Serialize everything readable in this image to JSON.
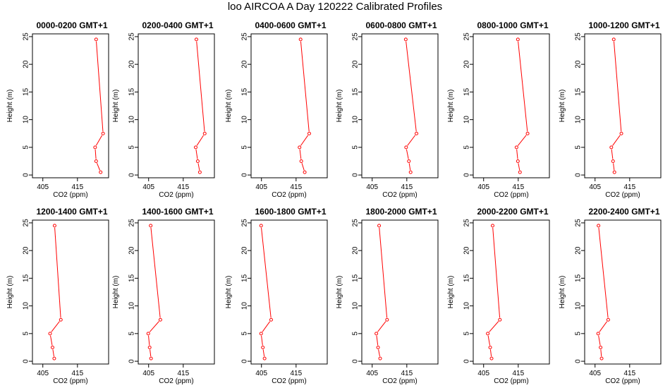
{
  "title": "loo AIRCOA A  Day 120222  Calibrated Profiles",
  "chart_data": [
    {
      "type": "line",
      "title": "0000-0200 GMT+1",
      "xlabel": "CO2 (ppm)",
      "ylabel": "Height (m)",
      "xlim": [
        402,
        424
      ],
      "ylim": [
        -0.5,
        25.5
      ],
      "xticks": [
        405,
        415
      ],
      "yticks": [
        0,
        5,
        10,
        15,
        20,
        25
      ],
      "series": [
        {
          "heights": [
            0.5,
            2.5,
            5,
            7.5,
            24.5
          ],
          "values": [
            421.7,
            420.4,
            420.1,
            422.4,
            420.4
          ]
        }
      ]
    },
    {
      "type": "line",
      "title": "0200-0400 GMT+1",
      "xlabel": "CO2 (ppm)",
      "ylabel": "Height (m)",
      "xlim": [
        402,
        424
      ],
      "ylim": [
        -0.5,
        25.5
      ],
      "xticks": [
        405,
        415
      ],
      "yticks": [
        0,
        5,
        10,
        15,
        20,
        25
      ],
      "series": [
        {
          "heights": [
            0.5,
            2.5,
            5,
            7.5,
            24.5
          ],
          "values": [
            419.8,
            419.2,
            418.6,
            421.2,
            418.8
          ]
        }
      ]
    },
    {
      "type": "line",
      "title": "0400-0600 GMT+1",
      "xlabel": "CO2 (ppm)",
      "ylabel": "Height (m)",
      "xlim": [
        402,
        424
      ],
      "ylim": [
        -0.5,
        25.5
      ],
      "xticks": [
        405,
        415
      ],
      "yticks": [
        0,
        5,
        10,
        15,
        20,
        25
      ],
      "series": [
        {
          "heights": [
            0.5,
            2.5,
            5,
            7.5,
            24.5
          ],
          "values": [
            417.5,
            416.5,
            416.0,
            418.8,
            416.3
          ]
        }
      ]
    },
    {
      "type": "line",
      "title": "0600-0800 GMT+1",
      "xlabel": "CO2 (ppm)",
      "ylabel": "Height (m)",
      "xlim": [
        402,
        424
      ],
      "ylim": [
        -0.5,
        25.5
      ],
      "xticks": [
        405,
        415
      ],
      "yticks": [
        0,
        5,
        10,
        15,
        20,
        25
      ],
      "series": [
        {
          "heights": [
            0.5,
            2.5,
            5,
            7.5,
            24.5
          ],
          "values": [
            416.1,
            415.6,
            414.8,
            417.8,
            414.7
          ]
        }
      ]
    },
    {
      "type": "line",
      "title": "0800-1000 GMT+1",
      "xlabel": "CO2 (ppm)",
      "ylabel": "Height (m)",
      "xlim": [
        402,
        424
      ],
      "ylim": [
        -0.5,
        25.5
      ],
      "xticks": [
        405,
        415
      ],
      "yticks": [
        0,
        5,
        10,
        15,
        20,
        25
      ],
      "series": [
        {
          "heights": [
            0.5,
            2.5,
            5,
            7.5,
            24.5
          ],
          "values": [
            415.5,
            414.9,
            414.5,
            417.7,
            414.9
          ]
        }
      ]
    },
    {
      "type": "line",
      "title": "1000-1200 GMT+1",
      "xlabel": "CO2 (ppm)",
      "ylabel": "Height (m)",
      "xlim": [
        402,
        424
      ],
      "ylim": [
        -0.5,
        25.5
      ],
      "xticks": [
        405,
        415
      ],
      "yticks": [
        0,
        5,
        10,
        15,
        20,
        25
      ],
      "series": [
        {
          "heights": [
            0.5,
            2.5,
            5,
            7.5,
            24.5
          ],
          "values": [
            410.6,
            410.2,
            409.7,
            412.6,
            410.4
          ]
        }
      ]
    },
    {
      "type": "line",
      "title": "1200-1400 GMT+1",
      "xlabel": "CO2 (ppm)",
      "ylabel": "Height (m)",
      "xlim": [
        402,
        424
      ],
      "ylim": [
        -0.5,
        25.5
      ],
      "xticks": [
        405,
        415
      ],
      "yticks": [
        0,
        5,
        10,
        15,
        20,
        25
      ],
      "series": [
        {
          "heights": [
            0.5,
            2.5,
            5,
            7.5,
            24.5
          ],
          "values": [
            408.3,
            407.8,
            407.1,
            410.2,
            408.4
          ]
        }
      ]
    },
    {
      "type": "line",
      "title": "1400-1600 GMT+1",
      "xlabel": "CO2 (ppm)",
      "ylabel": "Height (m)",
      "xlim": [
        402,
        424
      ],
      "ylim": [
        -0.5,
        25.5
      ],
      "xticks": [
        405,
        415
      ],
      "yticks": [
        0,
        5,
        10,
        15,
        20,
        25
      ],
      "series": [
        {
          "heights": [
            0.5,
            2.5,
            5,
            7.5,
            24.5
          ],
          "values": [
            405.7,
            405.3,
            404.9,
            408.4,
            405.6
          ]
        }
      ]
    },
    {
      "type": "line",
      "title": "1600-1800 GMT+1",
      "xlabel": "CO2 (ppm)",
      "ylabel": "Height (m)",
      "xlim": [
        402,
        424
      ],
      "ylim": [
        -0.5,
        25.5
      ],
      "xticks": [
        405,
        415
      ],
      "yticks": [
        0,
        5,
        10,
        15,
        20,
        25
      ],
      "series": [
        {
          "heights": [
            0.5,
            2.5,
            5,
            7.5,
            24.5
          ],
          "values": [
            405.9,
            405.4,
            404.9,
            407.8,
            404.9
          ]
        }
      ]
    },
    {
      "type": "line",
      "title": "1800-2000 GMT+1",
      "xlabel": "CO2 (ppm)",
      "ylabel": "Height (m)",
      "xlim": [
        402,
        424
      ],
      "ylim": [
        -0.5,
        25.5
      ],
      "xticks": [
        405,
        415
      ],
      "yticks": [
        0,
        5,
        10,
        15,
        20,
        25
      ],
      "series": [
        {
          "heights": [
            0.5,
            2.5,
            5,
            7.5,
            24.5
          ],
          "values": [
            407.3,
            406.7,
            406.2,
            409.3,
            407.0
          ]
        }
      ]
    },
    {
      "type": "line",
      "title": "2000-2200 GMT+1",
      "xlabel": "CO2 (ppm)",
      "ylabel": "Height (m)",
      "xlim": [
        402,
        424
      ],
      "ylim": [
        -0.5,
        25.5
      ],
      "xticks": [
        405,
        415
      ],
      "yticks": [
        0,
        5,
        10,
        15,
        20,
        25
      ],
      "series": [
        {
          "heights": [
            0.5,
            2.5,
            5,
            7.5,
            24.5
          ],
          "values": [
            407.3,
            406.9,
            406.2,
            409.7,
            407.6
          ]
        }
      ]
    },
    {
      "type": "line",
      "title": "2200-2400 GMT+1",
      "xlabel": "CO2 (ppm)",
      "ylabel": "Height (m)",
      "xlim": [
        402,
        424
      ],
      "ylim": [
        -0.5,
        25.5
      ],
      "xticks": [
        405,
        415
      ],
      "yticks": [
        0,
        5,
        10,
        15,
        20,
        25
      ],
      "series": [
        {
          "heights": [
            0.5,
            2.5,
            5,
            7.5,
            24.5
          ],
          "values": [
            406.9,
            406.6,
            405.9,
            408.8,
            406.0
          ]
        }
      ]
    }
  ],
  "colors": {
    "line": "#ff0000",
    "axis": "#000000"
  }
}
